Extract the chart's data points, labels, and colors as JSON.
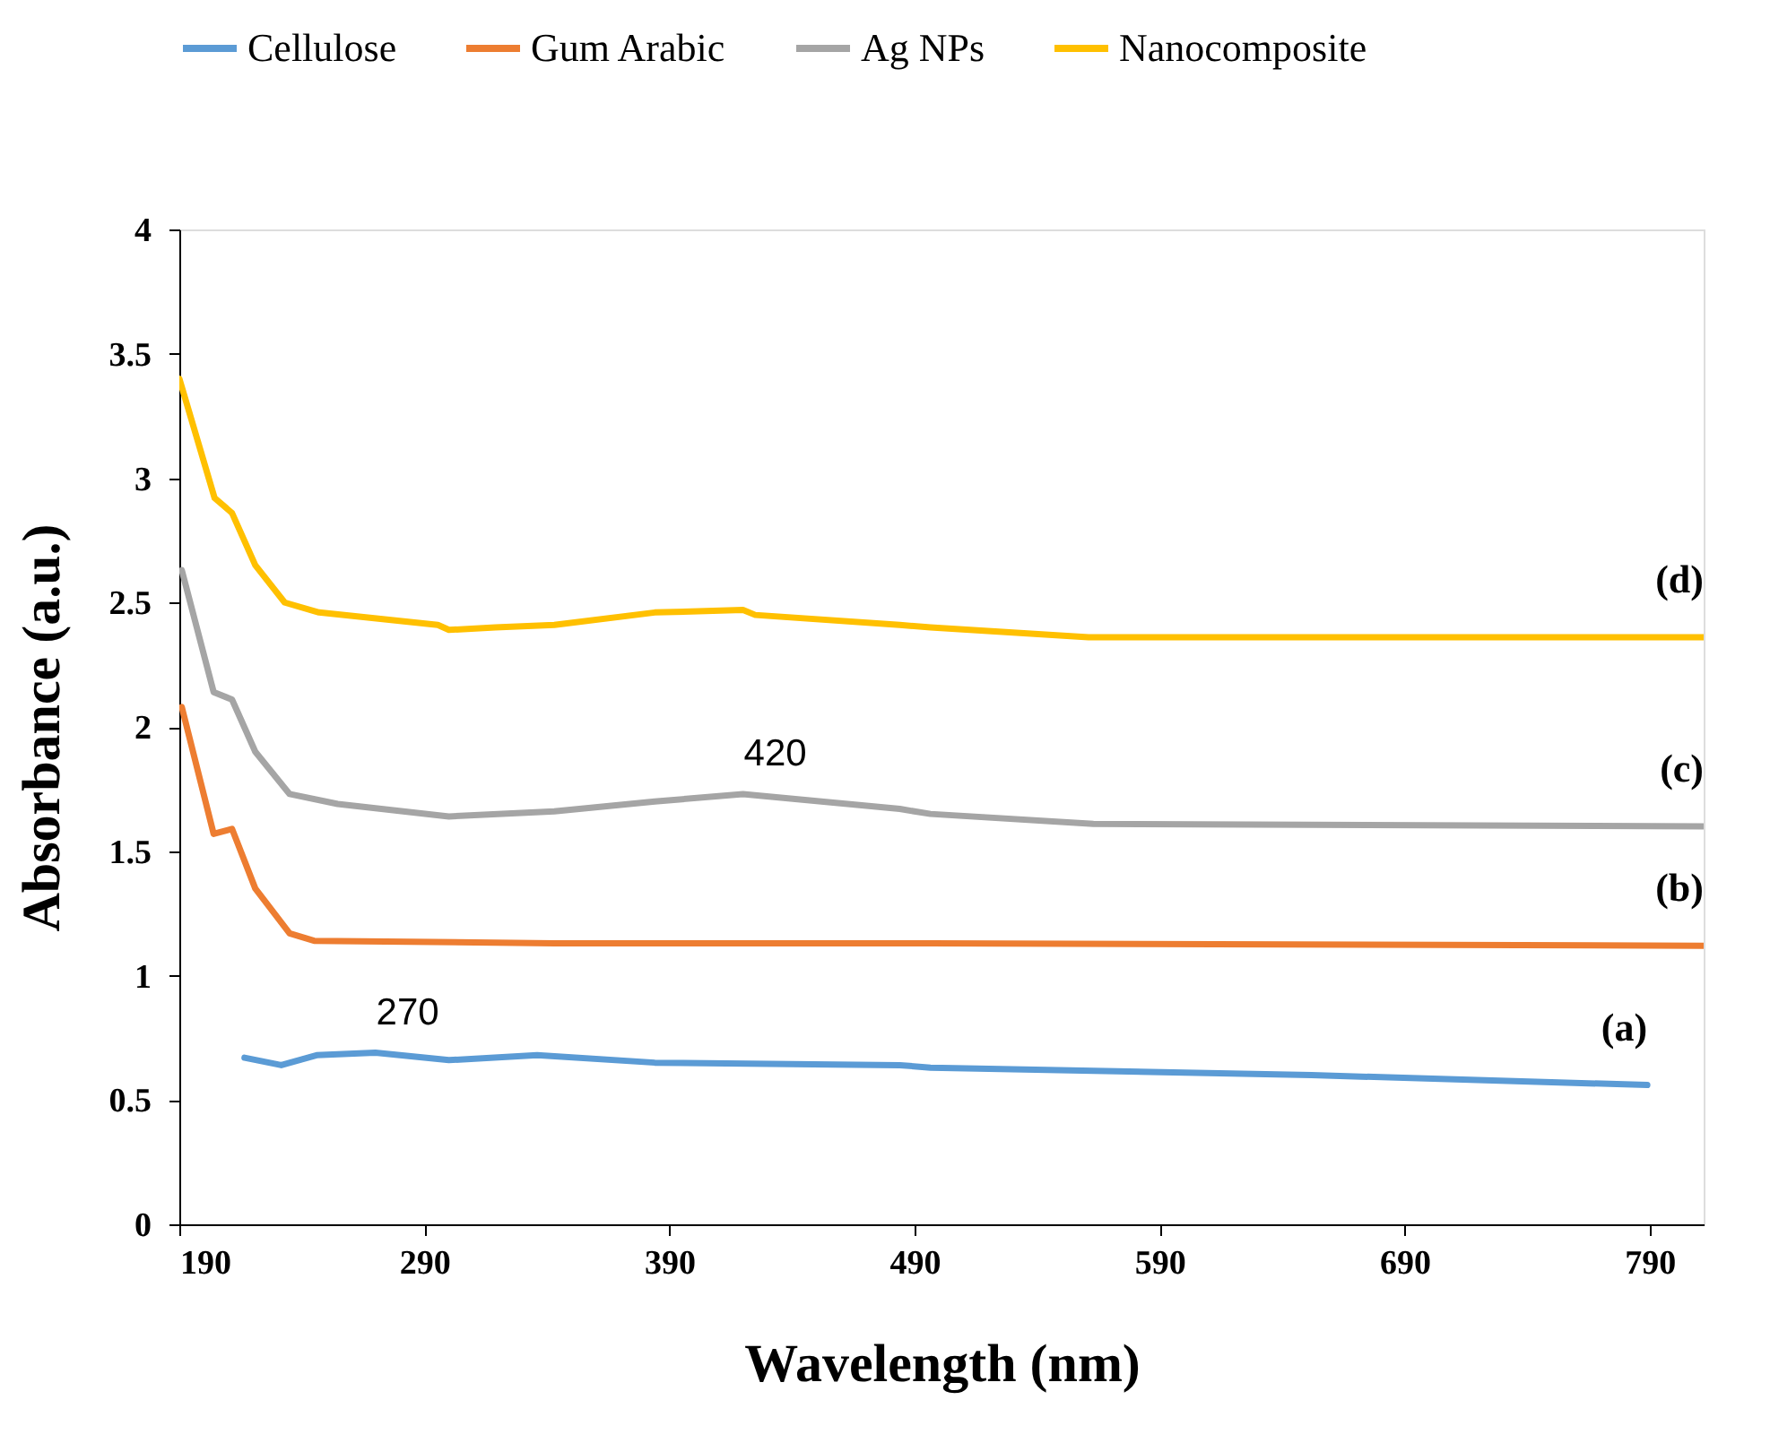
{
  "chart_data": {
    "type": "line",
    "xlabel": "Wavelength (nm)",
    "ylabel": "Absorbance (a.u.)",
    "xlim": [
      190,
      812
    ],
    "xticks": [
      190,
      290,
      390,
      490,
      590,
      690,
      790
    ],
    "ylim": [
      0,
      4
    ],
    "yticks": [
      0,
      0.5,
      1,
      1.5,
      2,
      2.5,
      3,
      3.5,
      4
    ],
    "grid": false,
    "legend": "top",
    "line_style": "solid",
    "marker": "none",
    "series": [
      {
        "name": "Cellulose",
        "color": "#5b9bd5",
        "x": [
          216.6,
          231.6,
          246,
          270,
          300,
          336,
          384,
          484,
          496.5,
          652,
          789
        ],
        "values": [
          0.67,
          0.64,
          0.68,
          0.69,
          0.66,
          0.68,
          0.65,
          0.64,
          0.63,
          0.6,
          0.56
        ]
      },
      {
        "name": "Gum Arabic",
        "color": "#ed7d31",
        "x": [
          191,
          204,
          211.5,
          221,
          235,
          245,
          343,
          496.5,
          812
        ],
        "values": [
          2.08,
          1.57,
          1.59,
          1.35,
          1.17,
          1.14,
          1.13,
          1.13,
          1.12
        ]
      },
      {
        "name": "Ag NPs",
        "color": "#a5a5a5",
        "x": [
          191,
          204,
          211.5,
          221,
          235,
          254.6,
          300,
          343,
          384,
          420,
          484,
          496.5,
          563,
          812
        ],
        "values": [
          2.63,
          2.14,
          2.11,
          1.9,
          1.73,
          1.69,
          1.64,
          1.66,
          1.7,
          1.73,
          1.67,
          1.65,
          1.61,
          1.6
        ]
      },
      {
        "name": "Nanocomposite",
        "color": "#ffc000",
        "x": [
          190,
          204.4,
          211.5,
          221,
          233,
          247,
          295.5,
          300,
          319,
          343,
          384,
          420,
          425,
          484,
          496.5,
          561,
          812
        ],
        "values": [
          3.4,
          2.92,
          2.86,
          2.65,
          2.5,
          2.46,
          2.41,
          2.39,
          2.4,
          2.41,
          2.46,
          2.47,
          2.45,
          2.41,
          2.4,
          2.36,
          2.36
        ]
      }
    ],
    "annotations": [
      {
        "text": "270",
        "x": 270,
        "y": 0.69
      },
      {
        "text": "420",
        "x": 420,
        "y": 1.73
      },
      {
        "text": "(a)",
        "x": 789,
        "y": 0.56
      },
      {
        "text": "(b)",
        "x": 812,
        "y": 1.12
      },
      {
        "text": "(c)",
        "x": 812,
        "y": 1.6
      },
      {
        "text": "(d)",
        "x": 812,
        "y": 2.36
      }
    ]
  }
}
